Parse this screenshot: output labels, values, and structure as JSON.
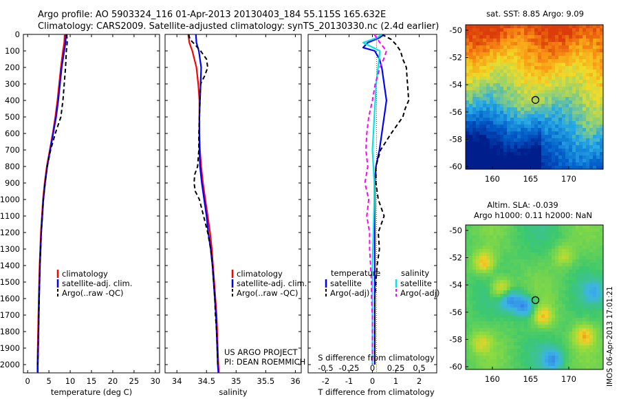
{
  "header": {
    "line1": "Argo profile: AO 5903324_116 01-Apr-2013 20130403_184 55.115S 165.632E",
    "line2": "Climatology: CARS2009. Satellite-adjusted climatology: synTS_20130330.nc (2.4d earlier)"
  },
  "depth_ticks": [
    "0",
    "100",
    "200",
    "300",
    "400",
    "500",
    "600",
    "700",
    "800",
    "900",
    "1000",
    "1100",
    "1200",
    "1300",
    "1400",
    "1500",
    "1600",
    "1700",
    "1800",
    "1900",
    "2000"
  ],
  "legend_profile": {
    "climatology": "climatology",
    "satellite": "satellite-adj. clim.",
    "argo": "Argo(..raw -QC)"
  },
  "legend_diff": {
    "temp_head": "temperature",
    "sal_head": "salinity",
    "sat": "satellite",
    "argo": "Argo(-adj)"
  },
  "credit": {
    "line1": "US ARGO PROJECT",
    "line2": "PI: DEAN ROEMMICH"
  },
  "timestamp": "IMOS 06-Apr-2013 17:01:21",
  "colors": {
    "climatology": "#ff0000",
    "satellite": "#0000ff",
    "argo": "#000000",
    "sal_satellite": "#00e5e5",
    "sal_argo": "#ff00ff"
  },
  "chart_data": [
    {
      "type": "line",
      "id": "temperature",
      "xlabel": "temperature (deg C)",
      "ylabel": "",
      "xlim": [
        -1,
        31
      ],
      "ylim": [
        2050,
        0
      ],
      "xticks": [
        "0",
        "5",
        "10",
        "15",
        "20",
        "25",
        "30"
      ],
      "series": [
        {
          "name": "climatology",
          "color": "#ff0000",
          "depth": [
            0,
            50,
            100,
            200,
            300,
            400,
            500,
            600,
            700,
            800,
            900,
            1000,
            1200,
            1400,
            1600,
            1800,
            2000,
            2050
          ],
          "values": [
            8.7,
            8.6,
            8.3,
            7.8,
            7.4,
            7.0,
            6.5,
            5.9,
            5.2,
            4.5,
            4.0,
            3.6,
            3.1,
            2.8,
            2.6,
            2.45,
            2.3,
            2.3
          ]
        },
        {
          "name": "satellite-adj. clim.",
          "color": "#0000ff",
          "depth": [
            0,
            50,
            100,
            200,
            300,
            400,
            500,
            600,
            700,
            800,
            900,
            1000,
            1200,
            1400,
            1600,
            1800,
            2000,
            2050
          ],
          "values": [
            9.0,
            8.9,
            8.6,
            8.0,
            7.6,
            7.2,
            6.7,
            6.0,
            5.3,
            4.6,
            4.1,
            3.7,
            3.2,
            2.9,
            2.7,
            2.55,
            2.4,
            2.4
          ]
        },
        {
          "name": "Argo(..raw -QC)",
          "color": "#000000",
          "depth": [
            0,
            50,
            100,
            200,
            300,
            400,
            500,
            600,
            700,
            800,
            900,
            1000,
            1200,
            1400,
            1600,
            1800,
            2000
          ],
          "values": [
            9.2,
            9.3,
            9.1,
            8.9,
            8.6,
            8.3,
            7.8,
            6.5,
            5.4,
            4.6,
            4.1,
            3.7,
            3.2,
            2.9,
            2.7,
            2.55,
            2.4
          ]
        }
      ]
    },
    {
      "type": "line",
      "id": "salinity",
      "xlabel": "salinity",
      "ylabel": "",
      "xlim": [
        33.8,
        36.1
      ],
      "ylim": [
        2050,
        0
      ],
      "xticks": [
        "34",
        "34.5",
        "35",
        "35.5",
        "36"
      ],
      "series": [
        {
          "name": "climatology",
          "color": "#ff0000",
          "depth": [
            0,
            50,
            100,
            200,
            300,
            400,
            500,
            600,
            700,
            800,
            900,
            1000,
            1100,
            1200,
            1300,
            1400,
            1500,
            1600,
            1700,
            1800,
            1900,
            2000,
            2050
          ],
          "values": [
            34.19,
            34.21,
            34.26,
            34.33,
            34.36,
            34.38,
            34.38,
            34.38,
            34.39,
            34.41,
            34.44,
            34.48,
            34.52,
            34.56,
            34.59,
            34.61,
            34.63,
            34.65,
            34.67,
            34.68,
            34.69,
            34.7,
            34.71
          ]
        },
        {
          "name": "satellite-adj. clim.",
          "color": "#0000ff",
          "depth": [
            0,
            50,
            100,
            200,
            300,
            400,
            500,
            600,
            700,
            800,
            900,
            1000,
            1100,
            1200,
            1300,
            1400,
            1500,
            1600,
            1700,
            1800,
            1900,
            2000,
            2050
          ],
          "values": [
            34.32,
            34.33,
            34.37,
            34.41,
            34.4,
            34.39,
            34.38,
            34.38,
            34.38,
            34.39,
            34.42,
            34.46,
            34.5,
            34.53,
            34.57,
            34.6,
            34.62,
            34.64,
            34.66,
            34.67,
            34.68,
            34.69,
            34.7
          ]
        },
        {
          "name": "Argo(..raw -QC)",
          "color": "#000000",
          "depth": [
            0,
            30,
            60,
            100,
            150,
            200,
            250,
            300,
            400,
            500,
            600,
            700,
            800,
            850,
            900,
            950,
            1000,
            1100,
            1200,
            1300,
            1400,
            1500,
            1600,
            1700,
            1800,
            1900,
            2000
          ],
          "values": [
            34.2,
            34.22,
            34.3,
            34.4,
            34.5,
            34.52,
            34.47,
            34.4,
            34.39,
            34.38,
            34.37,
            34.37,
            34.35,
            34.3,
            34.29,
            34.31,
            34.38,
            34.45,
            34.52,
            34.57,
            34.6,
            34.62,
            34.64,
            34.65,
            34.67,
            34.68,
            34.69
          ]
        }
      ]
    },
    {
      "type": "line",
      "id": "difference",
      "xlabel": "T difference from climatology",
      "x2label": "S difference from climatology",
      "ylabel": "",
      "xlim": [
        -2.75,
        2.75
      ],
      "ylim": [
        2050,
        0
      ],
      "xticks": [
        "-2",
        "-1",
        "0",
        "1",
        "2"
      ],
      "x2ticks": [
        "-0.5",
        "-0.25",
        "0",
        "0.25",
        "0.5"
      ],
      "series": [
        {
          "name": "temperature satellite",
          "color": "#0000ff",
          "depth": [
            0,
            20,
            50,
            80,
            100,
            150,
            200,
            300,
            400,
            500,
            600,
            700,
            800,
            900,
            1000,
            1200,
            1400,
            1600,
            1800,
            2000
          ],
          "values": [
            0.5,
            0.3,
            -0.2,
            -0.4,
            0.1,
            0.3,
            0.4,
            0.5,
            0.6,
            0.5,
            0.4,
            0.3,
            0.15,
            0.1,
            0.1,
            0.1,
            0.1,
            0.1,
            0.1,
            0.1
          ]
        },
        {
          "name": "temperature Argo(-adj)",
          "color": "#000000",
          "depth": [
            0,
            30,
            60,
            100,
            150,
            200,
            300,
            400,
            450,
            500,
            600,
            700,
            800,
            900,
            1000,
            1100,
            1200,
            1300,
            1400,
            1600,
            1800,
            2000
          ],
          "values": [
            0.4,
            0.8,
            1.0,
            1.2,
            1.3,
            1.45,
            1.5,
            1.55,
            1.4,
            1.3,
            0.8,
            0.35,
            0.15,
            0.15,
            0.25,
            0.5,
            0.25,
            0.3,
            0.2,
            0.1,
            0.1,
            0.1
          ]
        },
        {
          "name": "salinity satellite",
          "color": "#00e5e5",
          "depth": [
            0,
            20,
            50,
            100,
            200,
            300,
            400,
            500,
            600,
            700,
            800,
            900,
            1000,
            1200,
            1400,
            1600,
            1800,
            2000
          ],
          "values": [
            0.1,
            0.05,
            -0.1,
            0.08,
            0.06,
            0.04,
            0.03,
            0.02,
            0.01,
            0.0,
            0.01,
            0.02,
            0.02,
            0.01,
            0.0,
            0.0,
            0.0,
            0.0
          ]
        },
        {
          "name": "salinity Argo(-adj)",
          "color": "#ff00ff",
          "depth": [
            0,
            50,
            100,
            150,
            200,
            300,
            400,
            500,
            600,
            700,
            800,
            900,
            1000,
            1100,
            1200,
            1300,
            1400,
            1500,
            1600,
            1700,
            1800,
            1900,
            2000
          ],
          "values": [
            0.02,
            0.08,
            0.15,
            0.12,
            0.08,
            0.03,
            0.0,
            -0.04,
            -0.06,
            -0.07,
            -0.05,
            -0.08,
            -0.04,
            -0.06,
            -0.03,
            -0.03,
            -0.02,
            -0.01,
            -0.01,
            0.0,
            0.0,
            0.0,
            0.0
          ]
        }
      ]
    },
    {
      "type": "heatmap",
      "id": "sst_map",
      "title": "sat. SST: 8.85  Argo: 9.09",
      "xlim": [
        156.5,
        174.5
      ],
      "ylim": [
        -60.2,
        -49.6
      ],
      "xticks": [
        "160",
        "165",
        "170"
      ],
      "yticks": [
        "-50",
        "-52",
        "-54",
        "-56",
        "-58",
        "-60"
      ],
      "marker": {
        "lon": 165.632,
        "lat": -55.115
      }
    },
    {
      "type": "heatmap",
      "id": "sla_map",
      "title": "Altim. SLA: -0.039",
      "subtitle": "Argo h1000: 0.11 h2000: NaN",
      "xlim": [
        156.5,
        174.5
      ],
      "ylim": [
        -60.2,
        -49.6
      ],
      "xticks": [
        "160",
        "165",
        "170"
      ],
      "yticks": [
        "-50",
        "-52",
        "-54",
        "-56",
        "-58",
        "-60"
      ],
      "marker": {
        "lon": 165.632,
        "lat": -55.115
      }
    }
  ]
}
